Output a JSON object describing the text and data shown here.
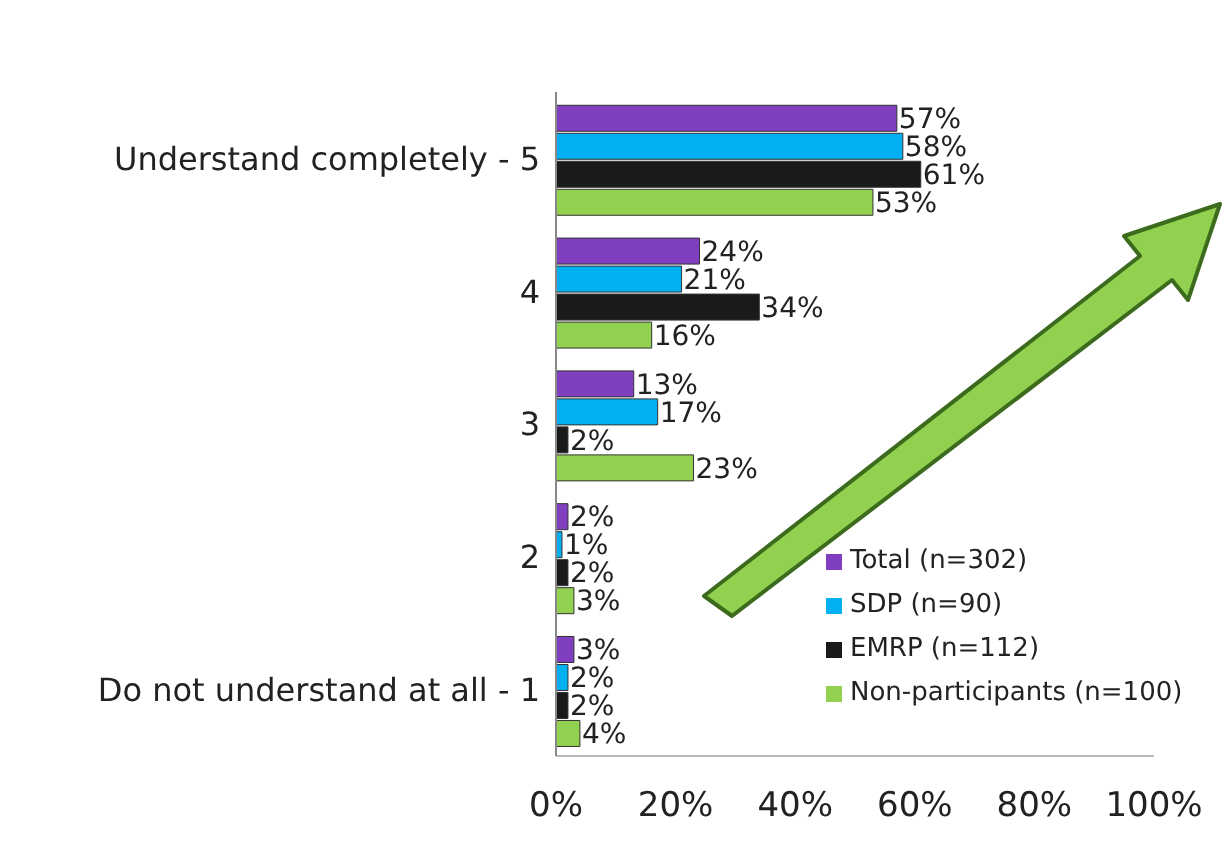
{
  "chart_data": {
    "type": "bar",
    "orientation": "horizontal",
    "categories": [
      "Understand completely - 5",
      "4",
      "3",
      "2",
      "Do not understand at all - 1"
    ],
    "series": [
      {
        "name": "Total (n=302)",
        "color": "#7f3fbf",
        "values": [
          57,
          24,
          13,
          2,
          3
        ],
        "value_labels": [
          "57%",
          "24%",
          "13%",
          "2%",
          "3%"
        ]
      },
      {
        "name": "SDP (n=90)",
        "color": "#00b0f0",
        "values": [
          58,
          21,
          17,
          1,
          2
        ],
        "value_labels": [
          "58%",
          "21%",
          "17%",
          "1%",
          "2%"
        ]
      },
      {
        "name": "EMRP (n=112)",
        "color": "#1a1a1a",
        "values": [
          61,
          34,
          2,
          2,
          2
        ],
        "value_labels": [
          "61%",
          "34%",
          "2%",
          "2%",
          "2%"
        ]
      },
      {
        "name": "Non-participants (n=100)",
        "color": "#92d050",
        "values": [
          53,
          16,
          23,
          3,
          4
        ],
        "value_labels": [
          "53%",
          "16%",
          "23%",
          "3%",
          "4%"
        ]
      }
    ],
    "xlim": [
      0,
      100
    ],
    "xticks": [
      {
        "value": 0,
        "label": "0%"
      },
      {
        "value": 20,
        "label": "20%"
      },
      {
        "value": 40,
        "label": "40%"
      },
      {
        "value": 60,
        "label": "60%"
      },
      {
        "value": 80,
        "label": "80%"
      },
      {
        "value": 100,
        "label": "100%"
      }
    ],
    "legend": "bottom right",
    "grid": false
  }
}
